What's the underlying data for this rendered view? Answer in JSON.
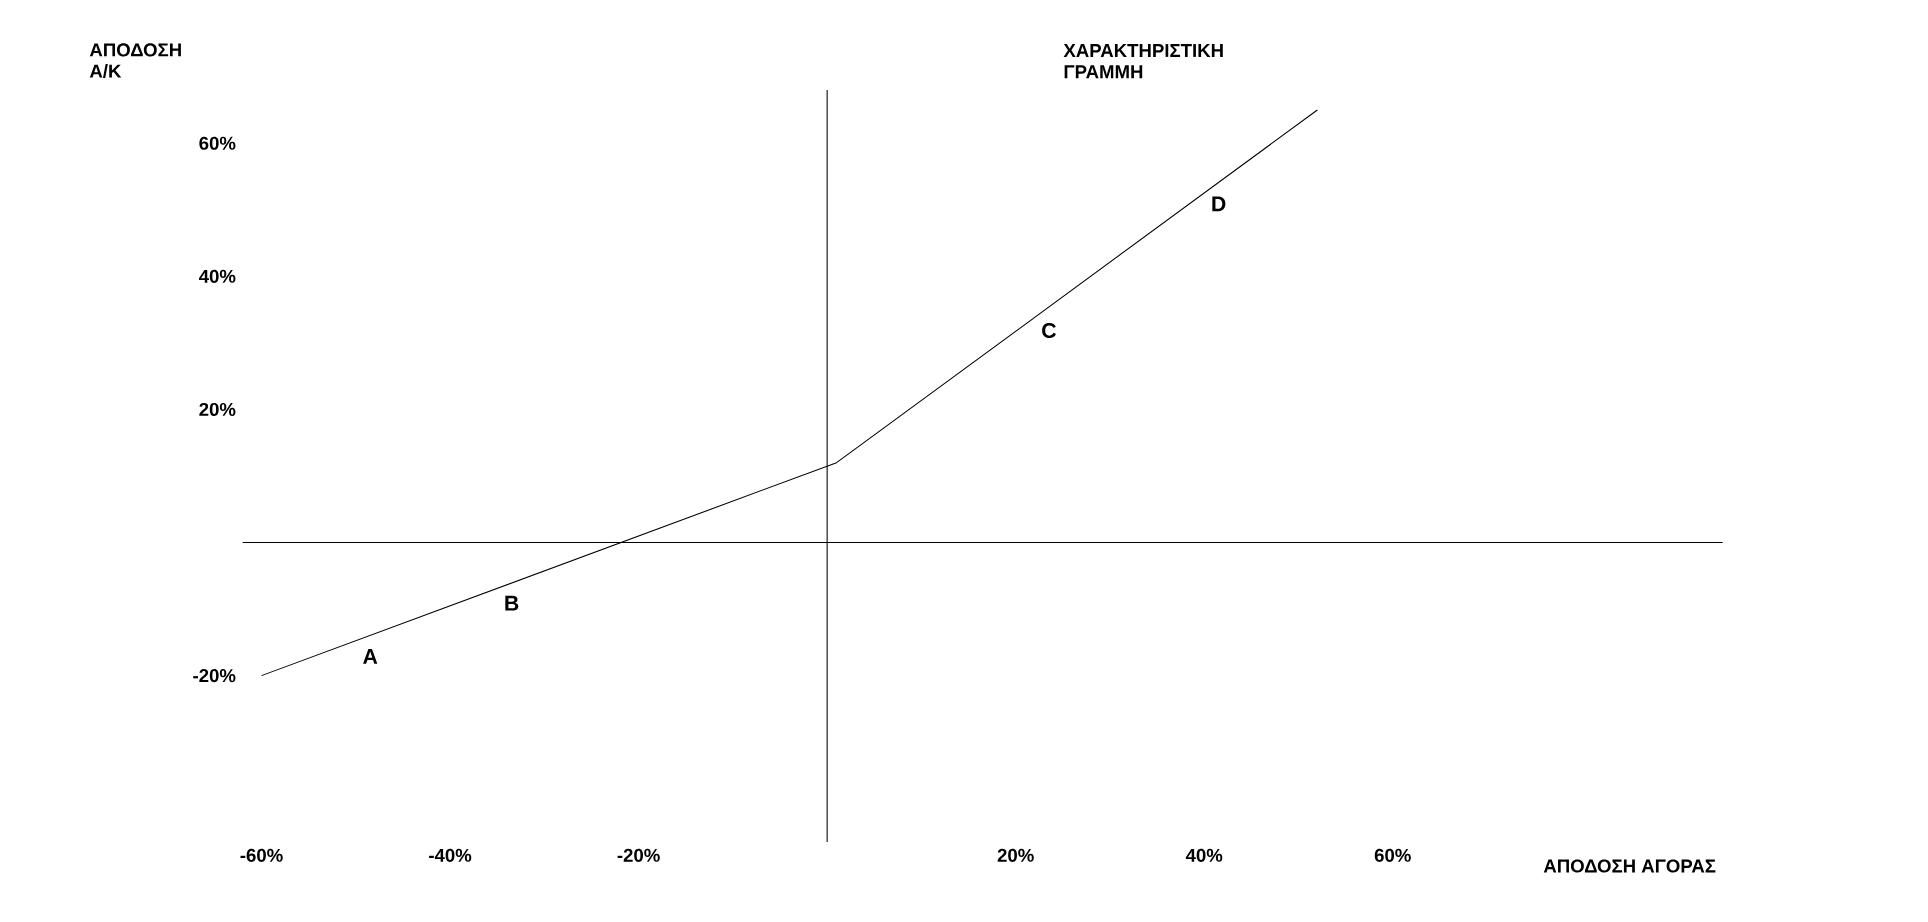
{
  "chart_data": {
    "type": "line",
    "xlabel": "ΑΠΟΔΟΣΗ ΑΓΟΡΑΣ",
    "ylabel": "ΑΠΟΔΟΣΗ Α/Κ",
    "x": [
      -60,
      1,
      52
    ],
    "series": [
      {
        "color": "#000000",
        "values": [
          -20,
          12,
          65
        ]
      }
    ],
    "xlim": [
      -62,
      95
    ],
    "ylim": [
      -45,
      68
    ],
    "xticks": [
      {
        "value": -60,
        "label": "-60%"
      },
      {
        "value": -40,
        "label": "-40%"
      },
      {
        "value": -20,
        "label": "-20%"
      },
      {
        "value": 20,
        "label": "20%"
      },
      {
        "value": 40,
        "label": "40%"
      },
      {
        "value": 60,
        "label": "60%"
      }
    ],
    "yticks": [
      {
        "value": -20,
        "label": "-20%"
      },
      {
        "value": 20,
        "label": "20%"
      },
      {
        "value": 40,
        "label": "40%"
      },
      {
        "value": 60,
        "label": "60%"
      }
    ],
    "annotations": [
      "ΧΑΡΑΚΤΗΡΙΣΤΙΚΗ ΓΡΑΜΜΗ",
      {
        "text": "A",
        "x": -50,
        "y": -15
      },
      {
        "text": "B",
        "x": -35,
        "y": -7
      },
      {
        "text": "C",
        "x": 22,
        "y": 34
      },
      {
        "text": "D",
        "x": 40,
        "y": 53
      }
    ]
  }
}
